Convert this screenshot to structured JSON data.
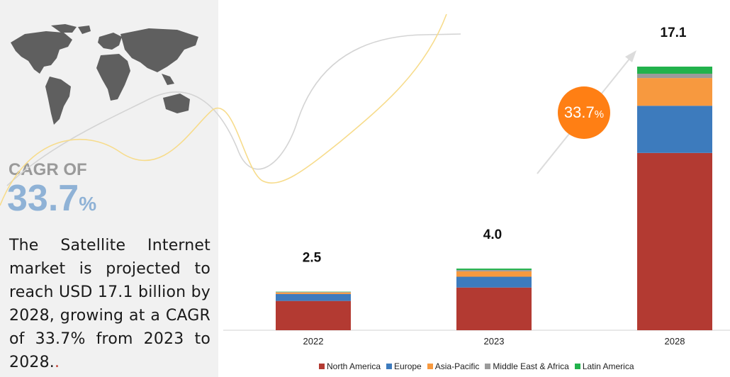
{
  "cagr": {
    "label": "CAGR OF",
    "value": "33.7",
    "unit": "%"
  },
  "summary": {
    "text": "The Satellite Internet market is projected to reach  USD 17.1 billion by 2028, growing at a CAGR of 33.7% from 2023 to 2028.",
    "trailing": "."
  },
  "bubble": {
    "value": "33.7",
    "unit": "%"
  },
  "colors": {
    "north_america": "#b33a32",
    "europe": "#3d7bbd",
    "asia_pacific": "#f7993f",
    "middle_east_africa": "#9b9b9b",
    "latin_america": "#22b24c",
    "bubble": "#ff7f14",
    "cagr_value": "#8fb2d6"
  },
  "chart_data": {
    "type": "bar",
    "stacked": true,
    "categories": [
      "2022",
      "2023",
      "2028"
    ],
    "series": [
      {
        "name": "North America",
        "color": "#b33a32",
        "values": [
          1.9,
          2.77,
          11.5
        ]
      },
      {
        "name": "Europe",
        "color": "#3d7bbd",
        "values": [
          0.45,
          0.7,
          3.06
        ]
      },
      {
        "name": "Asia-Pacific",
        "color": "#f7993f",
        "values": [
          0.1,
          0.35,
          1.8
        ]
      },
      {
        "name": "Middle East & Africa",
        "color": "#9b9b9b",
        "values": [
          0.03,
          0.09,
          0.28
        ]
      },
      {
        "name": "Latin America",
        "color": "#22b24c",
        "values": [
          0.02,
          0.09,
          0.46
        ]
      }
    ],
    "totals": [
      "2.5",
      "4.0",
      "17.1"
    ],
    "legend_position": "bottom",
    "ylim": [
      0,
      17.1
    ],
    "grid": false
  }
}
